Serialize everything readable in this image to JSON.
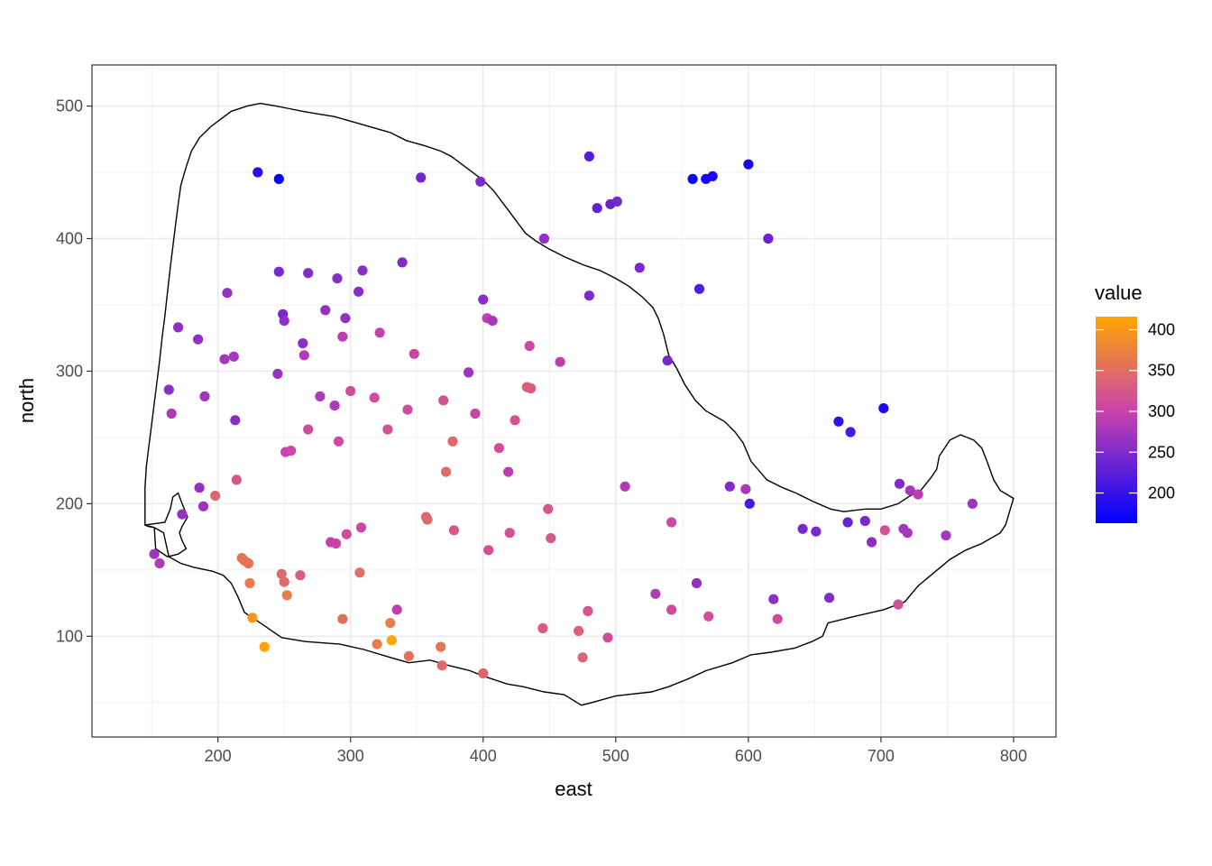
{
  "chart_data": {
    "type": "scatter",
    "title": "",
    "xlabel": "east",
    "ylabel": "north",
    "xlim": [
      105,
      832
    ],
    "ylim": [
      24,
      531
    ],
    "x_ticks": [
      200,
      300,
      400,
      500,
      600,
      700,
      800
    ],
    "y_ticks": [
      100,
      200,
      300,
      400,
      500
    ],
    "grid": true,
    "legend": {
      "title": "value",
      "placement": "right",
      "range": [
        163,
        416
      ],
      "breaks": [
        200,
        250,
        300,
        350,
        400
      ],
      "low_color": "#0000ff",
      "mid_color": "#cc44aa",
      "high_color": "#ffa500"
    },
    "boundary": [
      [
        145,
        184
      ],
      [
        160,
        186
      ],
      [
        164,
        196
      ],
      [
        166,
        205
      ],
      [
        170,
        208
      ],
      [
        173,
        200
      ],
      [
        177,
        190
      ],
      [
        173,
        183
      ],
      [
        171,
        178
      ],
      [
        173,
        172
      ],
      [
        176,
        166
      ],
      [
        170,
        162
      ],
      [
        162,
        160
      ],
      [
        153,
        166
      ],
      [
        152,
        182
      ],
      [
        145,
        184
      ],
      [
        145,
        184
      ],
      [
        147,
        183
      ],
      [
        152,
        182
      ],
      [
        159,
        178
      ],
      [
        163,
        160
      ],
      [
        172,
        155
      ],
      [
        182,
        152
      ],
      [
        196,
        149
      ],
      [
        204,
        146
      ],
      [
        210,
        140
      ],
      [
        215,
        130
      ],
      [
        220,
        118
      ],
      [
        232,
        110
      ],
      [
        248,
        99
      ],
      [
        266,
        96
      ],
      [
        292,
        94
      ],
      [
        310,
        90
      ],
      [
        330,
        84
      ],
      [
        344,
        80
      ],
      [
        360,
        82
      ],
      [
        374,
        78
      ],
      [
        390,
        74
      ],
      [
        400,
        70
      ],
      [
        418,
        64
      ],
      [
        430,
        62
      ],
      [
        446,
        58
      ],
      [
        461,
        56
      ],
      [
        474,
        48
      ],
      [
        482,
        50
      ],
      [
        500,
        55
      ],
      [
        527,
        58
      ],
      [
        540,
        62
      ],
      [
        555,
        68
      ],
      [
        568,
        74
      ],
      [
        588,
        80
      ],
      [
        602,
        86
      ],
      [
        617,
        88
      ],
      [
        635,
        91
      ],
      [
        648,
        96
      ],
      [
        656,
        100
      ],
      [
        660,
        110
      ],
      [
        680,
        115
      ],
      [
        702,
        120
      ],
      [
        718,
        126
      ],
      [
        728,
        138
      ],
      [
        740,
        148
      ],
      [
        752,
        158
      ],
      [
        764,
        165
      ],
      [
        776,
        170
      ],
      [
        790,
        178
      ],
      [
        794,
        184
      ],
      [
        800,
        204
      ],
      [
        790,
        210
      ],
      [
        785,
        218
      ],
      [
        780,
        232
      ],
      [
        776,
        242
      ],
      [
        770,
        248
      ],
      [
        760,
        252
      ],
      [
        752,
        248
      ],
      [
        748,
        242
      ],
      [
        744,
        236
      ],
      [
        742,
        226
      ],
      [
        738,
        220
      ],
      [
        730,
        210
      ],
      [
        722,
        206
      ],
      [
        713,
        200
      ],
      [
        700,
        196
      ],
      [
        688,
        196
      ],
      [
        672,
        194
      ],
      [
        662,
        196
      ],
      [
        648,
        202
      ],
      [
        636,
        208
      ],
      [
        626,
        212
      ],
      [
        614,
        218
      ],
      [
        602,
        232
      ],
      [
        596,
        246
      ],
      [
        590,
        254
      ],
      [
        582,
        262
      ],
      [
        575,
        266
      ],
      [
        568,
        270
      ],
      [
        560,
        278
      ],
      [
        552,
        290
      ],
      [
        546,
        302
      ],
      [
        540,
        312
      ],
      [
        536,
        328
      ],
      [
        532,
        340
      ],
      [
        528,
        348
      ],
      [
        520,
        356
      ],
      [
        510,
        364
      ],
      [
        500,
        370
      ],
      [
        488,
        376
      ],
      [
        476,
        380
      ],
      [
        462,
        386
      ],
      [
        450,
        392
      ],
      [
        440,
        398
      ],
      [
        432,
        404
      ],
      [
        426,
        412
      ],
      [
        420,
        420
      ],
      [
        414,
        428
      ],
      [
        408,
        436
      ],
      [
        400,
        444
      ],
      [
        392,
        450
      ],
      [
        384,
        456
      ],
      [
        376,
        462
      ],
      [
        368,
        466
      ],
      [
        356,
        470
      ],
      [
        342,
        474
      ],
      [
        330,
        480
      ],
      [
        316,
        484
      ],
      [
        302,
        488
      ],
      [
        288,
        492
      ],
      [
        276,
        494
      ],
      [
        264,
        496
      ],
      [
        254,
        498
      ],
      [
        244,
        500
      ],
      [
        232,
        502
      ],
      [
        222,
        500
      ],
      [
        210,
        496
      ],
      [
        202,
        490
      ],
      [
        194,
        484
      ],
      [
        186,
        476
      ],
      [
        180,
        466
      ],
      [
        176,
        454
      ],
      [
        172,
        440
      ],
      [
        170,
        426
      ],
      [
        168,
        410
      ],
      [
        166,
        394
      ],
      [
        164,
        378
      ],
      [
        162,
        360
      ],
      [
        160,
        342
      ],
      [
        158,
        326
      ],
      [
        156,
        308
      ],
      [
        154,
        292
      ],
      [
        152,
        276
      ],
      [
        150,
        260
      ],
      [
        148,
        244
      ],
      [
        146,
        228
      ],
      [
        145,
        212
      ],
      [
        145,
        196
      ],
      [
        145,
        184
      ]
    ],
    "series": [
      {
        "name": "value",
        "points": [
          [
            152,
            162,
            271
          ],
          [
            156,
            155,
            284
          ],
          [
            163,
            286,
            260
          ],
          [
            165,
            268,
            282
          ],
          [
            170,
            333,
            258
          ],
          [
            173,
            192,
            266
          ],
          [
            185,
            324,
            262
          ],
          [
            186,
            212,
            264
          ],
          [
            189,
            198,
            270
          ],
          [
            190,
            281,
            272
          ],
          [
            198,
            206,
            343
          ],
          [
            205,
            309,
            274
          ],
          [
            207,
            359,
            265
          ],
          [
            212,
            311,
            276
          ],
          [
            213,
            263,
            256
          ],
          [
            214,
            218,
            325
          ],
          [
            218,
            159,
            357
          ],
          [
            220,
            157,
            362
          ],
          [
            223,
            155,
            359
          ],
          [
            224,
            140,
            368
          ],
          [
            226,
            114,
            399
          ],
          [
            230,
            450,
            189
          ],
          [
            235,
            92,
            414
          ],
          [
            245,
            298,
            268
          ],
          [
            246,
            445,
            170
          ],
          [
            246,
            375,
            246
          ],
          [
            248,
            147,
            344
          ],
          [
            249,
            343,
            244
          ],
          [
            250,
            338,
            262
          ],
          [
            250,
            141,
            346
          ],
          [
            251,
            239,
            301
          ],
          [
            252,
            131,
            368
          ],
          [
            255,
            240,
            303
          ],
          [
            262,
            146,
            331
          ],
          [
            264,
            321,
            258
          ],
          [
            265,
            312,
            285
          ],
          [
            268,
            374,
            253
          ],
          [
            268,
            256,
            312
          ],
          [
            277,
            281,
            281
          ],
          [
            281,
            346,
            264
          ],
          [
            285,
            171,
            297
          ],
          [
            288,
            274,
            282
          ],
          [
            289,
            170,
            302
          ],
          [
            290,
            370,
            254
          ],
          [
            291,
            247,
            309
          ],
          [
            294,
            326,
            290
          ],
          [
            294,
            113,
            352
          ],
          [
            296,
            340,
            264
          ],
          [
            297,
            177,
            310
          ],
          [
            300,
            285,
            313
          ],
          [
            306,
            360,
            256
          ],
          [
            307,
            148,
            352
          ],
          [
            308,
            182,
            306
          ],
          [
            309,
            376,
            256
          ],
          [
            318,
            280,
            313
          ],
          [
            320,
            94,
            368
          ],
          [
            322,
            329,
            296
          ],
          [
            328,
            256,
            318
          ],
          [
            330,
            110,
            370
          ],
          [
            331,
            97,
            416
          ],
          [
            335,
            120,
            292
          ],
          [
            339,
            382,
            252
          ],
          [
            343,
            271,
            312
          ],
          [
            344,
            85,
            356
          ],
          [
            348,
            313,
            302
          ],
          [
            353,
            446,
            241
          ],
          [
            357,
            190,
            341
          ],
          [
            358,
            188,
            345
          ],
          [
            368,
            92,
            360
          ],
          [
            369,
            78,
            345
          ],
          [
            370,
            278,
            320
          ],
          [
            372,
            224,
            346
          ],
          [
            377,
            247,
            345
          ],
          [
            378,
            180,
            326
          ],
          [
            389,
            299,
            270
          ],
          [
            394,
            268,
            302
          ],
          [
            398,
            443,
            249
          ],
          [
            400,
            354,
            257
          ],
          [
            400,
            72,
            341
          ],
          [
            403,
            340,
            293
          ],
          [
            404,
            165,
            314
          ],
          [
            407,
            338,
            276
          ],
          [
            412,
            242,
            313
          ],
          [
            419,
            224,
            291
          ],
          [
            420,
            178,
            316
          ],
          [
            424,
            263,
            319
          ],
          [
            433,
            288,
            333
          ],
          [
            435,
            319,
            306
          ],
          [
            436,
            287,
            331
          ],
          [
            445,
            106,
            330
          ],
          [
            446,
            400,
            262
          ],
          [
            449,
            196,
            322
          ],
          [
            451,
            174,
            324
          ],
          [
            458,
            307,
            291
          ],
          [
            472,
            104,
            337
          ],
          [
            475,
            84,
            341
          ],
          [
            479,
            119,
            321
          ],
          [
            480,
            357,
            249
          ],
          [
            480,
            462,
            221
          ],
          [
            486,
            423,
            230
          ],
          [
            494,
            99,
            313
          ],
          [
            496,
            426,
            233
          ],
          [
            501,
            428,
            242
          ],
          [
            507,
            213,
            284
          ],
          [
            518,
            378,
            247
          ],
          [
            530,
            132,
            283
          ],
          [
            539,
            308,
            245
          ],
          [
            542,
            186,
            307
          ],
          [
            542,
            120,
            309
          ],
          [
            558,
            445,
            172
          ],
          [
            561,
            140,
            262
          ],
          [
            563,
            362,
            220
          ],
          [
            568,
            445,
            178
          ],
          [
            570,
            115,
            314
          ],
          [
            573,
            447,
            180
          ],
          [
            586,
            213,
            250
          ],
          [
            598,
            211,
            277
          ],
          [
            600,
            456,
            177
          ],
          [
            601,
            200,
            214
          ],
          [
            615,
            400,
            235
          ],
          [
            619,
            128,
            261
          ],
          [
            622,
            113,
            308
          ],
          [
            641,
            181,
            245
          ],
          [
            651,
            179,
            244
          ],
          [
            661,
            129,
            253
          ],
          [
            668,
            262,
            196
          ],
          [
            675,
            186,
            234
          ],
          [
            677,
            254,
            213
          ],
          [
            688,
            187,
            245
          ],
          [
            693,
            171,
            257
          ],
          [
            702,
            272,
            182
          ],
          [
            703,
            180,
            318
          ],
          [
            713,
            124,
            317
          ],
          [
            714,
            215,
            250
          ],
          [
            717,
            181,
            276
          ],
          [
            720,
            178,
            275
          ],
          [
            722,
            210,
            276
          ],
          [
            728,
            207,
            290
          ],
          [
            749,
            176,
            275
          ],
          [
            769,
            200,
            271
          ]
        ]
      }
    ]
  }
}
